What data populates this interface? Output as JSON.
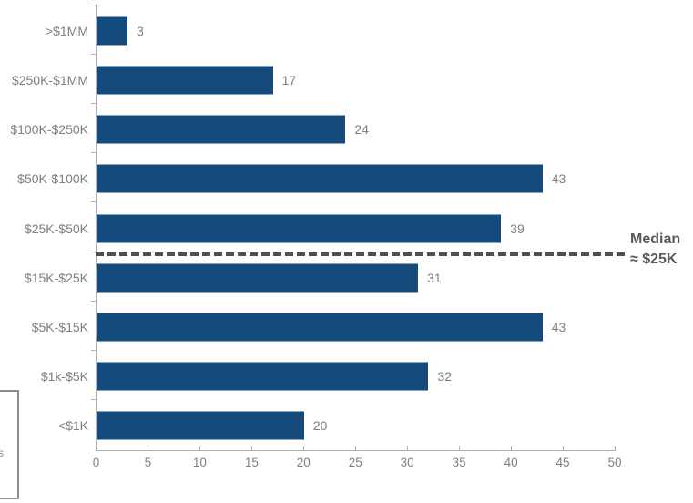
{
  "chart_data": {
    "type": "bar",
    "orientation": "horizontal",
    "title": "",
    "xlabel": "",
    "ylabel": "",
    "categories": [
      ">$1MM",
      "$250K-$1MM",
      "$100K-$250K",
      "$50K-$100K",
      "$25K-$50K",
      "$15K-$25K",
      "$5K-$15K",
      "$1k-$5K",
      "<$1K"
    ],
    "values": [
      3,
      17,
      24,
      43,
      39,
      31,
      43,
      32,
      20
    ],
    "xlim": [
      0,
      50
    ],
    "x_ticks": [
      0,
      5,
      10,
      15,
      20,
      25,
      30,
      35,
      40,
      45,
      50
    ],
    "grid": false,
    "legend_position": "none",
    "data_labels_shown": true,
    "annotation": {
      "line1": "Median",
      "line2": "≈ $25K",
      "after_category_index": 4,
      "style": "dashed-line"
    },
    "colors": {
      "bar": "#154a7c",
      "labels": "#7f7f7f",
      "annotation": "#595959",
      "axis": "#b0b0b0"
    }
  },
  "cut_off_box": {
    "fragment": "s"
  }
}
